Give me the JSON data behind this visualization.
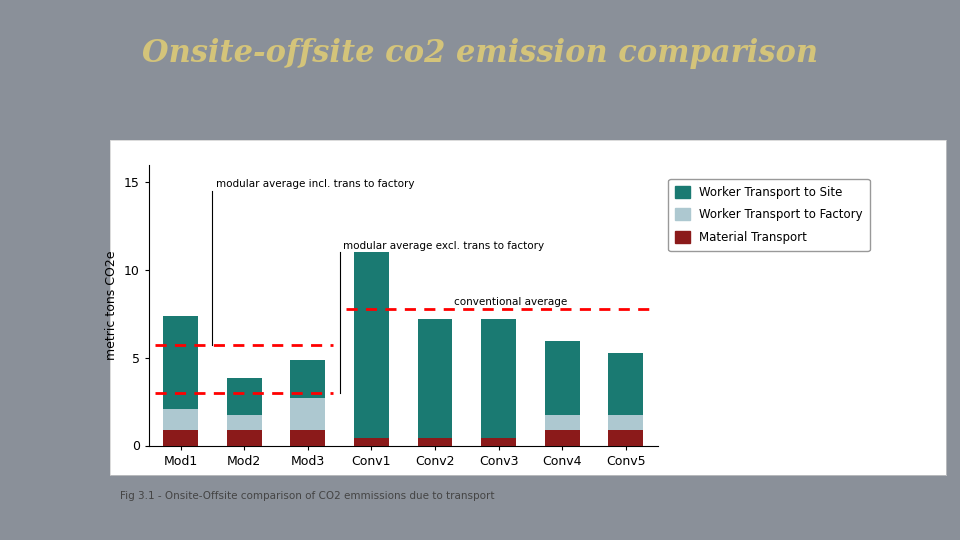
{
  "title": "Onsite-offsite co2 emission comparison",
  "title_color": "#d4c47a",
  "background_color": "#8a9099",
  "chart_background": "#ffffff",
  "categories": [
    "Mod1",
    "Mod2",
    "Mod3",
    "Conv1",
    "Conv2",
    "Conv3",
    "Conv4",
    "Conv5"
  ],
  "worker_transport_site": [
    5.3,
    2.1,
    2.2,
    10.6,
    6.8,
    6.8,
    4.2,
    3.5
  ],
  "worker_transport_factory": [
    1.2,
    0.85,
    1.8,
    0.0,
    0.0,
    0.0,
    0.85,
    0.85
  ],
  "material_transport": [
    0.9,
    0.9,
    0.9,
    0.4,
    0.4,
    0.4,
    0.9,
    0.9
  ],
  "color_worker_site": "#1a7a72",
  "color_worker_factory": "#adc8d0",
  "color_material": "#8b1a1a",
  "modular_avg_incl": 5.75,
  "modular_avg_excl": 3.0,
  "conventional_avg": 7.75,
  "ylabel": "metric tons CO2e",
  "ylim": [
    0,
    16
  ],
  "yticks": [
    0,
    5,
    10,
    15
  ],
  "caption": "Fig 3.1 - Onsite-Offsite comparison of CO2 emmissions due to transport",
  "annotation_mod_incl": "modular average incl. trans to factory",
  "annotation_mod_excl": "modular average excl. trans to factory",
  "annotation_conv": "conventional average"
}
